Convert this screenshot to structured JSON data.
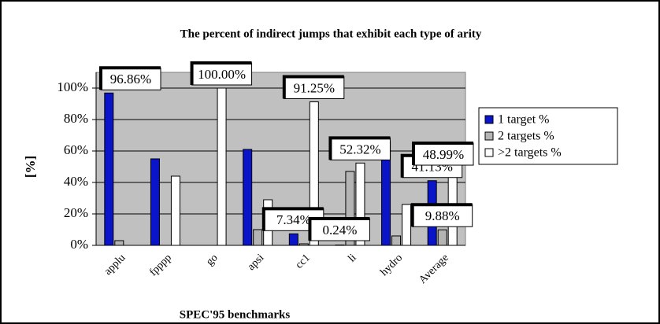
{
  "chart_data": {
    "type": "bar",
    "title": "The percent of indirect jumps that exhibit each type of arity",
    "x_label": "SPEC'95 benchmarks",
    "y_label": "[%]",
    "categories": [
      "applu",
      "fpppp",
      "go",
      "apsi",
      "cc1",
      "li",
      "hydro",
      "Average"
    ],
    "series": [
      {
        "name": "1 target %",
        "color": "#0a14c8",
        "values": [
          96.86,
          55,
          0,
          61,
          7.34,
          0.24,
          66,
          41.13
        ],
        "value_labels": [
          "96.86%",
          null,
          null,
          null,
          "7.34%",
          "0.24%",
          null,
          "41.13%"
        ]
      },
      {
        "name": "2 targets %",
        "color": "#b4b4b4",
        "values": [
          3,
          0,
          0,
          10,
          1,
          47,
          6,
          9.88
        ],
        "value_labels": [
          null,
          null,
          null,
          null,
          null,
          null,
          null,
          "9.88%"
        ]
      },
      {
        "name": ">2 targets %",
        "color": "#ffffff",
        "values": [
          0,
          44,
          100,
          29,
          91.25,
          52.32,
          26,
          48.99
        ],
        "value_labels": [
          null,
          null,
          "100.00%",
          null,
          "91.25%",
          "52.32%",
          null,
          "48.99%"
        ]
      }
    ],
    "ylim": [
      0,
      110
    ],
    "yticks": [
      {
        "value": 0,
        "label": "0%"
      },
      {
        "value": 20,
        "label": "20%"
      },
      {
        "value": 40,
        "label": "40%"
      },
      {
        "value": 60,
        "label": "60%"
      },
      {
        "value": 80,
        "label": "80%"
      },
      {
        "value": 100,
        "label": "100%"
      }
    ],
    "grid": true,
    "legend": "right"
  }
}
